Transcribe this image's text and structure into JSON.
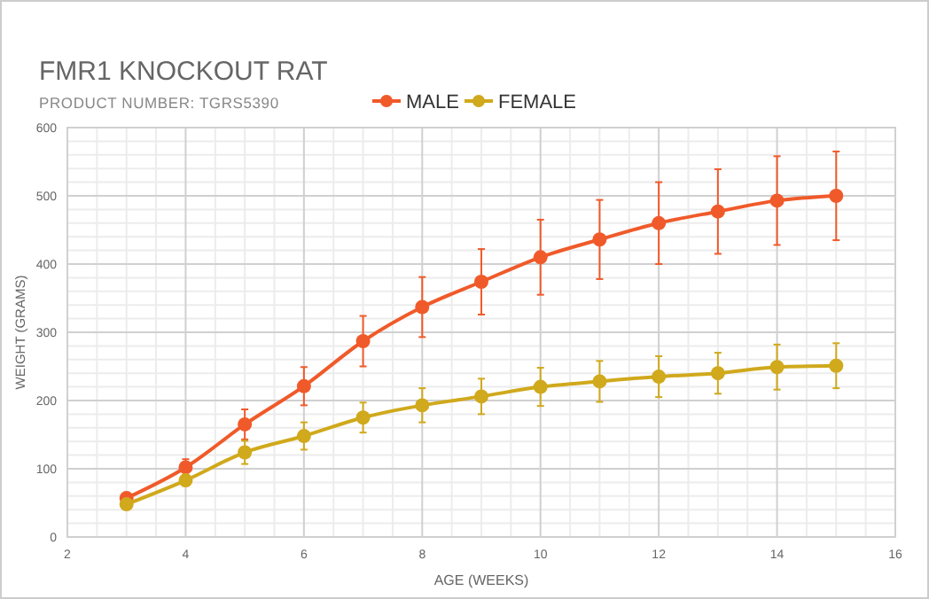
{
  "chart_data": {
    "type": "line",
    "title": "FMR1 KNOCKOUT RAT",
    "subtitle": "PRODUCT NUMBER: TGRS5390",
    "xlabel": "AGE (WEEKS)",
    "ylabel": "WEIGHT (GRAMS)",
    "x": [
      3,
      4,
      5,
      6,
      7,
      8,
      9,
      10,
      11,
      12,
      13,
      14,
      15
    ],
    "series": [
      {
        "name": "MALE",
        "color": "#f05a2a",
        "values": [
          57,
          102,
          165,
          221,
          287,
          337,
          374,
          410,
          436,
          460,
          477,
          493,
          500
        ],
        "errors": [
          5,
          12,
          22,
          28,
          37,
          44,
          48,
          55,
          58,
          60,
          62,
          65,
          65
        ]
      },
      {
        "name": "FEMALE",
        "color": "#d0a91c",
        "values": [
          48,
          83,
          124,
          148,
          175,
          193,
          206,
          220,
          228,
          235,
          240,
          249,
          251
        ],
        "errors": [
          5,
          8,
          17,
          20,
          22,
          25,
          26,
          28,
          30,
          30,
          30,
          33,
          33
        ]
      }
    ],
    "xlim": [
      2,
      16
    ],
    "xticks": [
      2,
      4,
      6,
      8,
      10,
      12,
      14,
      16
    ],
    "ylim": [
      0,
      600
    ],
    "yticks": [
      0,
      100,
      200,
      300,
      400,
      500,
      600
    ],
    "grid": true,
    "legend": "top",
    "marker": "circle",
    "line_style": "solid"
  }
}
